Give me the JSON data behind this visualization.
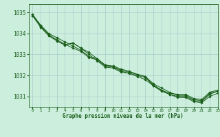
{
  "title": "Graphe pression niveau de la mer (hPa)",
  "bg_color": "#cceedd",
  "grid_color": "#aacccc",
  "line_color": "#1a5e1a",
  "marker_color": "#1a5e1a",
  "xlim": [
    -0.5,
    23
  ],
  "ylim": [
    1030.5,
    1035.4
  ],
  "yticks": [
    1031,
    1032,
    1033,
    1034,
    1035
  ],
  "xticks": [
    0,
    1,
    2,
    3,
    4,
    5,
    6,
    7,
    8,
    9,
    10,
    11,
    12,
    13,
    14,
    15,
    16,
    17,
    18,
    19,
    20,
    21,
    22,
    23
  ],
  "series": [
    [
      1034.9,
      1034.4,
      1034.0,
      1033.8,
      1033.6,
      1033.4,
      1033.2,
      1032.9,
      1032.8,
      1032.5,
      1032.45,
      1032.3,
      1032.2,
      1032.05,
      1031.95,
      1031.6,
      1031.4,
      1031.2,
      1031.05,
      1031.05,
      1030.85,
      1030.8,
      1031.15,
      1031.25
    ],
    [
      1034.9,
      1034.35,
      1033.95,
      1033.7,
      1033.5,
      1033.3,
      1033.15,
      1032.85,
      1032.75,
      1032.45,
      1032.4,
      1032.2,
      1032.1,
      1031.95,
      1031.8,
      1031.5,
      1031.3,
      1031.1,
      1030.95,
      1030.95,
      1030.75,
      1030.7,
      1031.0,
      1031.15
    ],
    [
      1034.85,
      1034.3,
      1033.9,
      1033.65,
      1033.45,
      1033.55,
      1033.3,
      1033.0,
      1032.7,
      1032.4,
      1032.35,
      1032.15,
      1032.1,
      1032.0,
      1031.9,
      1031.5,
      1031.25,
      1031.1,
      1031.0,
      1031.0,
      1030.8,
      1030.75,
      1031.1,
      1031.25
    ],
    [
      1034.85,
      1034.3,
      1033.9,
      1033.65,
      1033.45,
      1033.55,
      1033.3,
      1033.1,
      1032.8,
      1032.5,
      1032.4,
      1032.25,
      1032.15,
      1032.05,
      1031.95,
      1031.55,
      1031.3,
      1031.15,
      1031.1,
      1031.1,
      1030.9,
      1030.85,
      1031.2,
      1031.3
    ]
  ]
}
